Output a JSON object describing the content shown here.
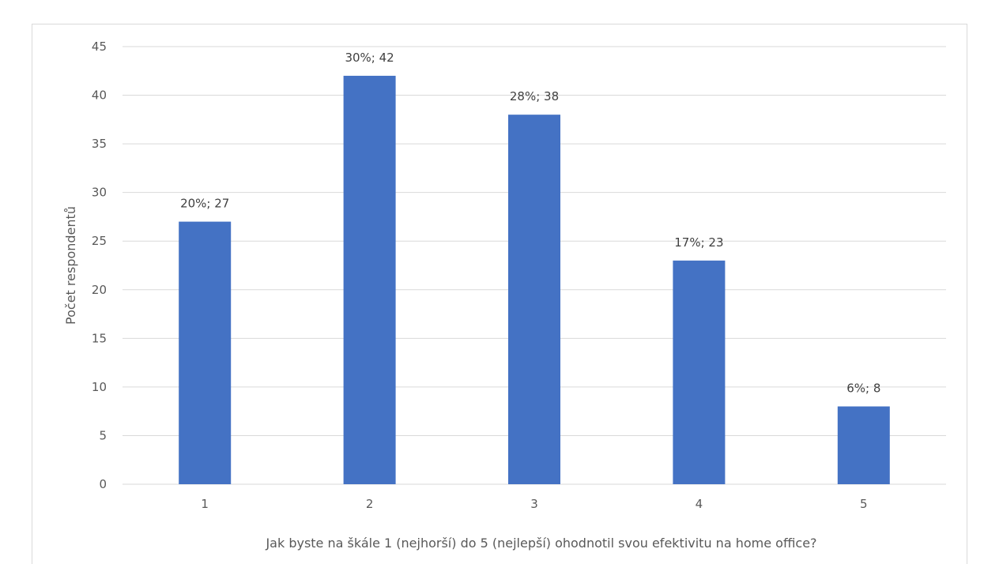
{
  "chart_data": {
    "type": "bar",
    "categories": [
      "1",
      "2",
      "3",
      "4",
      "5"
    ],
    "values": [
      27,
      42,
      38,
      23,
      8
    ],
    "data_labels": [
      "20%; 27",
      "30%; 42",
      "28%; 38",
      "17%; 23",
      "6%; 8"
    ],
    "title": "",
    "xlabel": "Jak byste na škále 1 (nejhorší) do 5 (nejlepší) ohodnotil svou efektivitu na home office?",
    "ylabel": "Počet respondentů",
    "ylim": [
      0,
      45
    ],
    "yticks": [
      "0",
      "5",
      "10",
      "15",
      "20",
      "25",
      "30",
      "35",
      "40",
      "45"
    ],
    "grid": true,
    "bar_color": "#4472C4",
    "grid_color": "#D9D9D9"
  }
}
